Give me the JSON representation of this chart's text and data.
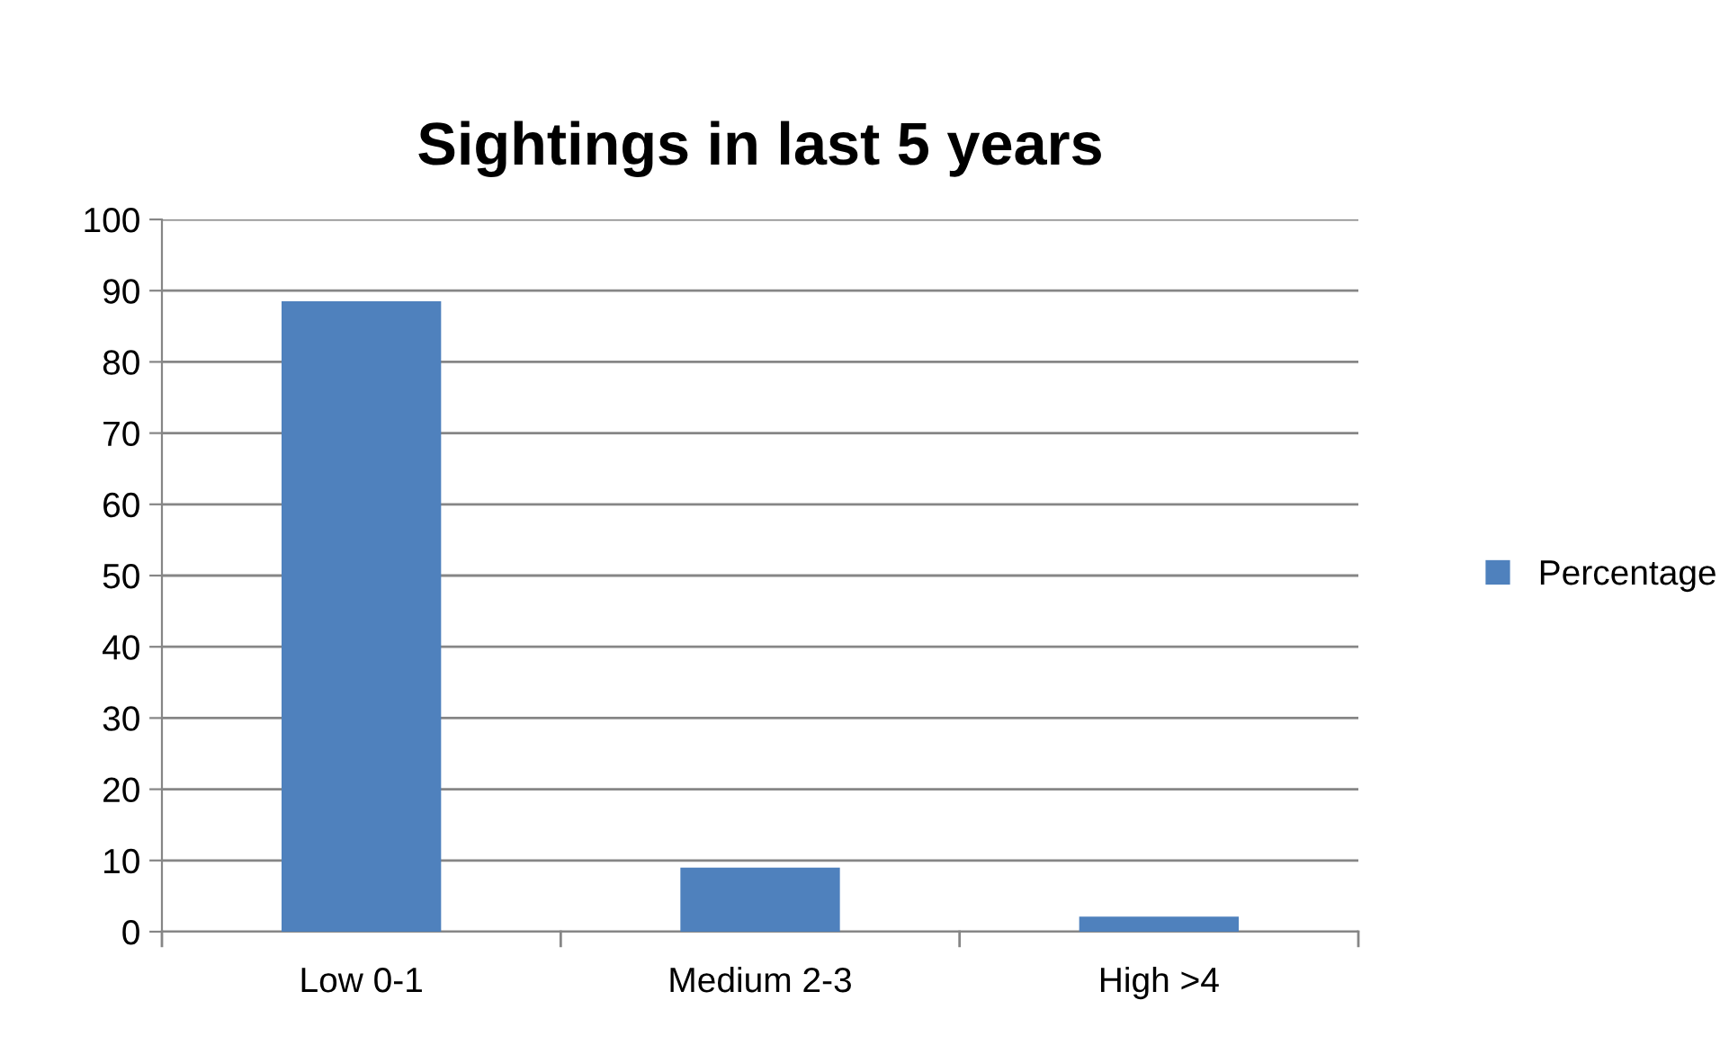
{
  "chart_data": {
    "type": "bar",
    "title": "Sightings in last 5 years",
    "categories": [
      "Low 0-1",
      "Medium 2-3",
      "High >4"
    ],
    "series": [
      {
        "name": "Percentage",
        "color": "#4f81bd",
        "values": [
          88.5,
          9.0,
          2.1
        ]
      }
    ],
    "ylim": [
      0,
      100
    ],
    "yticks": [
      0,
      10,
      20,
      30,
      40,
      50,
      60,
      70,
      80,
      90,
      100
    ],
    "grid": "y",
    "legend": "right"
  }
}
